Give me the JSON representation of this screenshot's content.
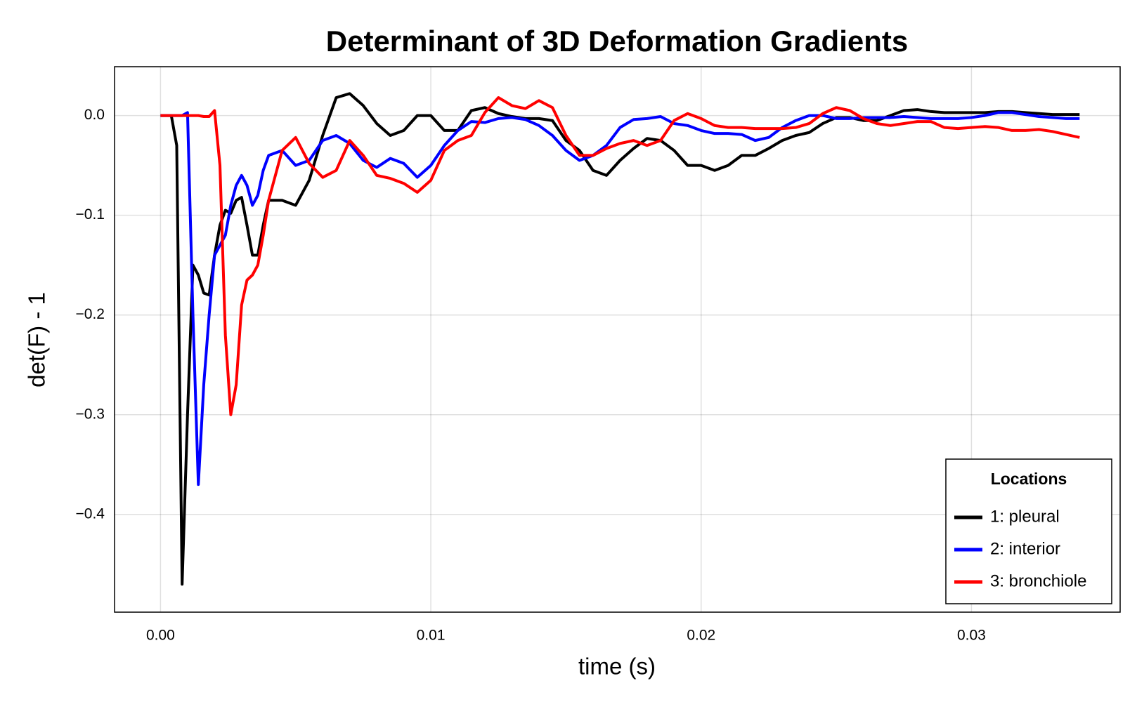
{
  "chart_data": {
    "type": "line",
    "title": "Determinant of 3D Deformation Gradients",
    "xlabel": "time (s)",
    "ylabel": "det(F) - 1",
    "x": [
      0,
      0.0002,
      0.0004,
      0.0006,
      0.0008,
      0.001,
      0.0012,
      0.0014,
      0.0016,
      0.0018,
      0.002,
      0.0022,
      0.0024,
      0.0026,
      0.0028,
      0.003,
      0.0032,
      0.0034,
      0.0036,
      0.0038,
      0.004,
      0.0045,
      0.005,
      0.0055,
      0.006,
      0.0065,
      0.007,
      0.0075,
      0.008,
      0.0085,
      0.009,
      0.0095,
      0.01,
      0.0105,
      0.011,
      0.0115,
      0.012,
      0.0125,
      0.013,
      0.0135,
      0.014,
      0.0145,
      0.015,
      0.0155,
      0.016,
      0.0165,
      0.017,
      0.0175,
      0.018,
      0.0185,
      0.019,
      0.0195,
      0.02,
      0.0205,
      0.021,
      0.0215,
      0.022,
      0.0225,
      0.023,
      0.0235,
      0.024,
      0.0245,
      0.025,
      0.0255,
      0.026,
      0.0265,
      0.027,
      0.0275,
      0.028,
      0.0285,
      0.029,
      0.0295,
      0.03,
      0.0305,
      0.031,
      0.0315,
      0.032,
      0.0325,
      0.033,
      0.0335,
      0.034
    ],
    "series": [
      {
        "name": "1: pleural",
        "color": "#000000",
        "values": [
          0,
          0,
          0,
          -0.03,
          -0.47,
          -0.3,
          -0.15,
          -0.16,
          -0.178,
          -0.18,
          -0.14,
          -0.11,
          -0.095,
          -0.098,
          -0.085,
          -0.082,
          -0.11,
          -0.14,
          -0.14,
          -0.11,
          -0.085,
          -0.085,
          -0.09,
          -0.065,
          -0.02,
          0.018,
          0.022,
          0.01,
          -0.008,
          -0.02,
          -0.015,
          0.0,
          0.0,
          -0.015,
          -0.015,
          0.005,
          0.008,
          0.002,
          -0.001,
          -0.003,
          -0.003,
          -0.005,
          -0.025,
          -0.035,
          -0.055,
          -0.06,
          -0.045,
          -0.033,
          -0.023,
          -0.025,
          -0.035,
          -0.05,
          -0.05,
          -0.055,
          -0.05,
          -0.04,
          -0.04,
          -0.033,
          -0.025,
          -0.02,
          -0.017,
          -0.008,
          -0.002,
          -0.002,
          -0.005,
          -0.005,
          0.0,
          0.005,
          0.006,
          0.004,
          0.003,
          0.003,
          0.003,
          0.003,
          0.004,
          0.004,
          0.003,
          0.002,
          0.001,
          0.001,
          0.001
        ]
      },
      {
        "name": "2: interior",
        "color": "#0000ff",
        "values": [
          0,
          0,
          0,
          0,
          0,
          0.003,
          -0.2,
          -0.37,
          -0.27,
          -0.2,
          -0.14,
          -0.13,
          -0.12,
          -0.09,
          -0.07,
          -0.06,
          -0.07,
          -0.09,
          -0.08,
          -0.055,
          -0.04,
          -0.035,
          -0.05,
          -0.045,
          -0.025,
          -0.02,
          -0.028,
          -0.045,
          -0.052,
          -0.043,
          -0.048,
          -0.062,
          -0.05,
          -0.03,
          -0.015,
          -0.006,
          -0.007,
          -0.003,
          -0.002,
          -0.004,
          -0.01,
          -0.02,
          -0.035,
          -0.045,
          -0.04,
          -0.03,
          -0.012,
          -0.004,
          -0.003,
          -0.001,
          -0.008,
          -0.01,
          -0.015,
          -0.018,
          -0.018,
          -0.019,
          -0.025,
          -0.022,
          -0.012,
          -0.005,
          0.0,
          0.0,
          -0.003,
          -0.003,
          -0.002,
          -0.002,
          -0.002,
          -0.001,
          -0.002,
          -0.003,
          -0.003,
          -0.003,
          -0.002,
          0.0,
          0.003,
          0.003,
          0.001,
          -0.001,
          -0.002,
          -0.003,
          -0.003
        ]
      },
      {
        "name": "3: bronchiole",
        "color": "#ff0000",
        "values": [
          0,
          0,
          0,
          0,
          0,
          0,
          0,
          0,
          -0.001,
          -0.001,
          0.005,
          -0.05,
          -0.22,
          -0.3,
          -0.27,
          -0.19,
          -0.165,
          -0.16,
          -0.15,
          -0.12,
          -0.085,
          -0.035,
          -0.022,
          -0.048,
          -0.062,
          -0.055,
          -0.025,
          -0.04,
          -0.06,
          -0.063,
          -0.068,
          -0.077,
          -0.065,
          -0.035,
          -0.025,
          -0.02,
          0.003,
          0.018,
          0.01,
          0.007,
          0.015,
          0.008,
          -0.02,
          -0.04,
          -0.04,
          -0.033,
          -0.028,
          -0.025,
          -0.03,
          -0.025,
          -0.005,
          0.002,
          -0.003,
          -0.01,
          -0.012,
          -0.012,
          -0.013,
          -0.013,
          -0.013,
          -0.012,
          -0.008,
          0.002,
          0.008,
          0.005,
          -0.003,
          -0.008,
          -0.01,
          -0.008,
          -0.006,
          -0.006,
          -0.012,
          -0.013,
          -0.012,
          -0.011,
          -0.012,
          -0.015,
          -0.015,
          -0.014,
          -0.016,
          -0.019,
          -0.022
        ]
      }
    ],
    "xlim": [
      -0.0017,
      0.0355
    ],
    "ylim": [
      -0.498,
      0.049
    ],
    "xticks": [
      {
        "value": 0,
        "label": "0.00"
      },
      0.01,
      0.02,
      0.03
    ],
    "yticks": [
      {
        "value": -0.4,
        "label": "−0.4"
      },
      {
        "value": -0.3,
        "label": "−0.3"
      },
      {
        "value": -0.2,
        "label": "−0.2"
      },
      {
        "value": -0.1,
        "label": "−0.1"
      },
      {
        "value": 0,
        "label": "0.0"
      }
    ],
    "grid": true,
    "legend_title": "Locations",
    "legend_position": "lower right"
  }
}
